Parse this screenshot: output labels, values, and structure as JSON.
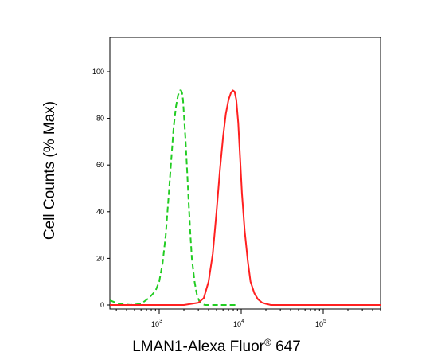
{
  "chart_data": {
    "type": "line",
    "title": "",
    "xlabel": "LMAN1-Alexa Fluor",
    "xlabel_superscript": "®",
    "xlabel_suffix": " 647",
    "ylabel": "Cell Counts (% Max)",
    "x_scale": "log",
    "xlim": [
      250,
      500000
    ],
    "ylim": [
      0,
      100
    ],
    "y_ticks": [
      0,
      20,
      40,
      60,
      80,
      100
    ],
    "x_ticks": [
      {
        "value": 1000,
        "base": "10",
        "exp": "3"
      },
      {
        "value": 10000,
        "base": "10",
        "exp": "4"
      },
      {
        "value": 100000,
        "base": "10",
        "exp": "5"
      }
    ],
    "grid": false,
    "series": [
      {
        "color": "#22cc22",
        "style": "dashed",
        "x": [
          250,
          320,
          450,
          600,
          750,
          900,
          1000,
          1100,
          1200,
          1300,
          1400,
          1500,
          1600,
          1700,
          1800,
          1850,
          1900,
          1950,
          2000,
          2100,
          2200,
          2300,
          2400,
          2500,
          2700,
          2900,
          3100,
          3300,
          3600,
          4000,
          4500,
          6000,
          9000
        ],
        "y": [
          2,
          0.5,
          0,
          0.5,
          3,
          6,
          10,
          18,
          30,
          46,
          62,
          76,
          85,
          90,
          92,
          92,
          91,
          88,
          82,
          70,
          56,
          42,
          30,
          20,
          10,
          4,
          1.5,
          0.5,
          0,
          0,
          0,
          0,
          0
        ]
      },
      {
        "color": "#ff2020",
        "style": "solid",
        "x": [
          250,
          1000,
          2000,
          3000,
          3500,
          4000,
          4500,
          5000,
          5500,
          6000,
          6500,
          7000,
          7500,
          7900,
          8300,
          8700,
          9200,
          9700,
          10200,
          11000,
          12000,
          13000,
          14500,
          16000,
          18000,
          20000,
          23000,
          27000,
          35000,
          60000,
          500000
        ],
        "y": [
          0,
          0,
          0,
          1,
          3,
          10,
          22,
          40,
          58,
          72,
          82,
          88,
          91,
          92,
          91.5,
          88,
          78,
          63,
          48,
          32,
          19,
          10,
          5,
          2.5,
          1,
          0.5,
          0,
          0,
          0,
          0,
          0
        ]
      }
    ]
  }
}
